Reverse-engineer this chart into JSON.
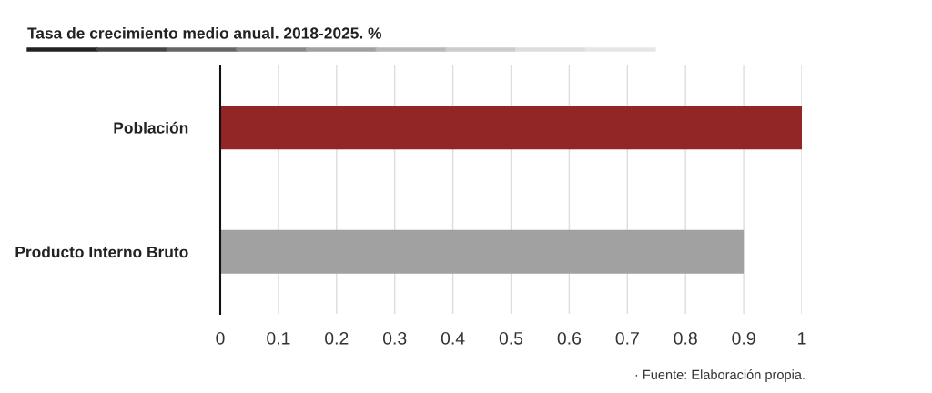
{
  "chart_data": {
    "type": "bar",
    "orientation": "horizontal",
    "title": "Tasa de crecimiento medio anual. 2018-2025. %",
    "categories": [
      "Población",
      "Producto Interno Bruto"
    ],
    "values": [
      1,
      0.9
    ],
    "colors": [
      "#922626",
      "#a0a1a0"
    ],
    "xlim": [
      0,
      1
    ],
    "xticks": [
      0,
      0.1,
      0.2,
      0.3,
      0.4,
      0.5,
      0.6,
      0.7,
      0.8,
      0.9,
      1
    ],
    "grid": "x",
    "legend": false,
    "annotations": [
      "· Fuente: Elaboración propia."
    ]
  }
}
